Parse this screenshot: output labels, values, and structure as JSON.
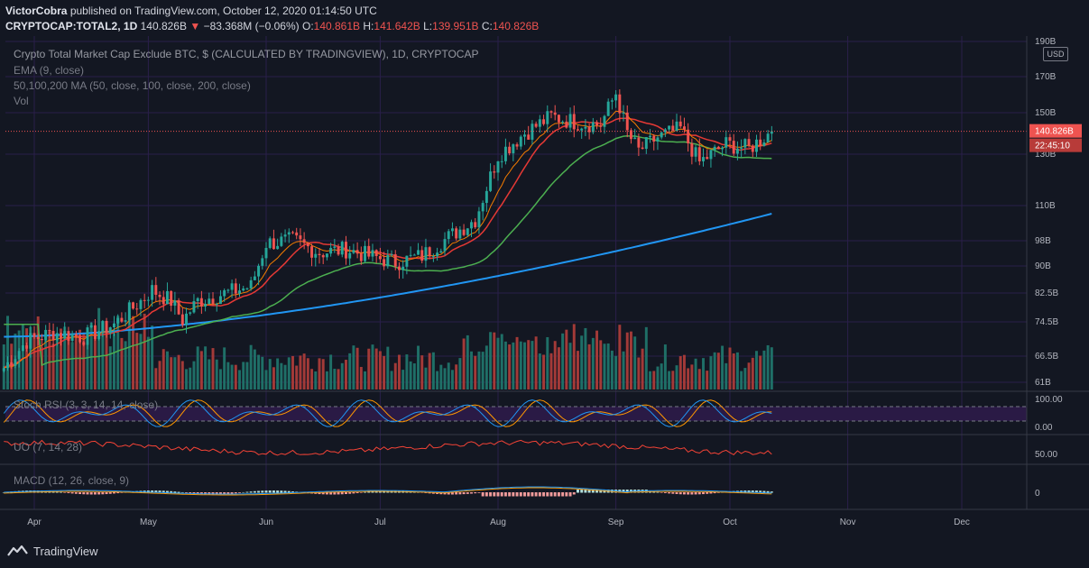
{
  "header": {
    "publisher": "VictorCobra",
    "published_text": "published on TradingView.com, October 12, 2020 01:14:50 UTC",
    "symbol": "CRYPTOCAP:TOTAL2, 1D",
    "last": "140.826B",
    "change": "−83.368M (−0.06%)",
    "open_label": "O:",
    "open": "140.861B",
    "high_label": "H:",
    "high": "141.642B",
    "low_label": "L:",
    "low": "139.951B",
    "close_label": "C:",
    "close": "140.826B"
  },
  "legend": {
    "title": "Crypto Total Market Cap Exclude BTC, $ (CALCULATED BY TRADINGVIEW), 1D, CRYPTOCAP",
    "ema": "EMA (9, close)",
    "ma": "50,100,200 MA (50, close, 100, close, 200, close)",
    "vol": "Vol"
  },
  "price_axis": {
    "currency": "USD",
    "ticks": [
      "190B",
      "170B",
      "150B",
      "130B",
      "110B",
      "98B",
      "90B",
      "82.5B",
      "74.5B",
      "66.5B",
      "61B"
    ],
    "last_price": "140.826B",
    "countdown": "22:45:10"
  },
  "panes": {
    "stoch": {
      "label": "Stoch RSI (3, 3, 14, 14, close)",
      "ticks": [
        "100.00",
        "0.00"
      ]
    },
    "uo": {
      "label": "UO (7, 14, 28)",
      "ticks": [
        "50.00"
      ]
    },
    "macd": {
      "label": "MACD (12, 26, close, 9)",
      "ticks": [
        "0"
      ]
    }
  },
  "time_axis": [
    "Apr",
    "May",
    "Jun",
    "Jul",
    "Aug",
    "Sep",
    "Oct",
    "Nov",
    "Dec"
  ],
  "branding": {
    "logo_text": "TradingView"
  },
  "colors": {
    "background": "#131722",
    "up": "#26a69a",
    "down": "#ef5350",
    "ema": "#f57c00",
    "ma50": "#e53935",
    "ma100": "#4caf50",
    "ma200": "#2196f3",
    "last_price": "#ef5350",
    "stoch_k": "#2196f3",
    "stoch_d": "#ff9800",
    "uo": "#f44336",
    "macd": "#2196f3",
    "signal": "#ff9800"
  },
  "chart_data": {
    "type": "candlestick",
    "title": "Crypto Total Market Cap Exclude BTC, $ (CALCULATED BY TRADINGVIEW), 1D, CRYPTOCAP",
    "interval": "1D",
    "scale": "log",
    "ylim": [
      60,
      190
    ],
    "y_unit": "B USD",
    "x_ticks": [
      "Apr",
      "May",
      "Jun",
      "Jul",
      "Aug",
      "Sep",
      "Oct",
      "Nov",
      "Dec"
    ],
    "x_range": [
      "2020-03-24",
      "2020-12-31"
    ],
    "close_series": {
      "start": "2020-03-24",
      "anchors": [
        [
          "2020-03-24",
          64
        ],
        [
          "2020-03-30",
          70
        ],
        [
          "2020-04-06",
          72
        ],
        [
          "2020-04-14",
          71
        ],
        [
          "2020-04-22",
          74
        ],
        [
          "2020-04-29",
          80
        ],
        [
          "2020-05-02",
          83
        ],
        [
          "2020-05-07",
          80
        ],
        [
          "2020-05-10",
          75
        ],
        [
          "2020-05-14",
          80
        ],
        [
          "2020-05-21",
          82
        ],
        [
          "2020-05-28",
          84
        ],
        [
          "2020-06-01",
          97
        ],
        [
          "2020-06-08",
          98
        ],
        [
          "2020-06-15",
          94
        ],
        [
          "2020-06-22",
          95
        ],
        [
          "2020-06-28",
          93
        ],
        [
          "2020-07-05",
          91
        ],
        [
          "2020-07-12",
          93
        ],
        [
          "2020-07-19",
          99
        ],
        [
          "2020-07-26",
          105
        ],
        [
          "2020-08-01",
          130
        ],
        [
          "2020-08-08",
          140
        ],
        [
          "2020-08-15",
          148
        ],
        [
          "2020-08-22",
          145
        ],
        [
          "2020-08-28",
          144
        ],
        [
          "2020-09-01",
          160
        ],
        [
          "2020-09-04",
          140
        ],
        [
          "2020-09-07",
          132
        ],
        [
          "2020-09-12",
          138
        ],
        [
          "2020-09-18",
          142
        ],
        [
          "2020-09-23",
          127
        ],
        [
          "2020-09-30",
          135
        ],
        [
          "2020-10-06",
          133
        ],
        [
          "2020-10-12",
          140.826
        ]
      ]
    },
    "last_candle": {
      "date": "2020-10-12",
      "open": 140.861,
      "high": 141.642,
      "low": 139.951,
      "close": 140.826,
      "change": -0.083368,
      "change_pct": -0.06
    },
    "ema9_end": 141,
    "ma50_end": 139,
    "ma100_end": 132,
    "ma200_end": 107,
    "last_price_line": 140.826
  }
}
